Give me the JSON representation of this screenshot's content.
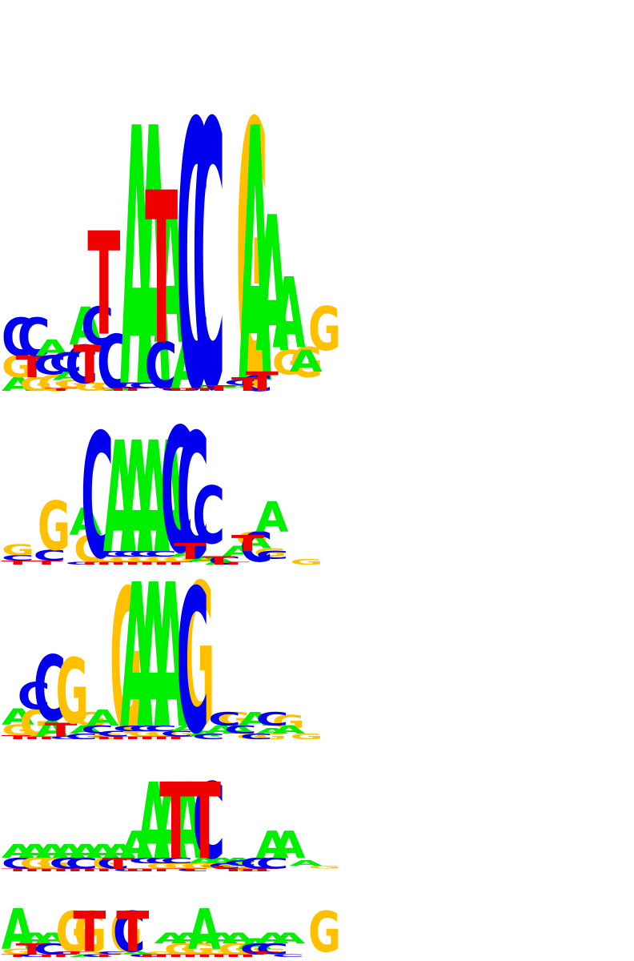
{
  "colors": {
    "A": "#00ee00",
    "C": "#0000ee",
    "G": "#ffc000",
    "T": "#ee0000"
  },
  "logos": [
    {
      "name": "motif-1",
      "columns": [
        [
          [
            "A",
            0.05
          ],
          [
            "G",
            0.08
          ],
          [
            "C",
            0.14
          ]
        ],
        [
          [
            "G",
            0.05
          ],
          [
            "T",
            0.08
          ],
          [
            "C",
            0.14
          ]
        ],
        [
          [
            "G",
            0.06
          ],
          [
            "C",
            0.07
          ],
          [
            "A",
            0.06
          ]
        ],
        [
          [
            "T",
            0.01
          ],
          [
            "G",
            0.03
          ],
          [
            "A",
            0.03
          ],
          [
            "C",
            0.07
          ]
        ],
        [
          [
            "G",
            0.03
          ],
          [
            "C",
            0.14
          ],
          [
            "A",
            0.14
          ]
        ],
        [
          [
            "G",
            0.03
          ],
          [
            "T",
            0.14
          ],
          [
            "C",
            0.14
          ]
        ],
        [
          [
            "A",
            0.01
          ],
          [
            "C",
            0.2
          ],
          [
            "T",
            0.38
          ]
        ],
        [
          [
            "T",
            0.01
          ],
          [
            "C",
            0.02
          ],
          [
            "A",
            0.95
          ]
        ],
        [
          [
            "T",
            0.01
          ],
          [
            "C",
            0.02
          ],
          [
            "A",
            0.95
          ]
        ],
        [
          [
            "G",
            0.01
          ],
          [
            "C",
            0.17
          ],
          [
            "A",
            0.56
          ]
        ],
        [
          [
            "C",
            0.01
          ],
          [
            "A",
            0.17
          ],
          [
            "T",
            0.56
          ]
        ],
        [
          [
            "T",
            0.01
          ],
          [
            "A",
            0.01
          ],
          [
            "C",
            0.98
          ]
        ],
        [
          [
            "T",
            0.01
          ],
          [
            "A",
            0.01
          ],
          [
            "C",
            0.98
          ]
        ],
        [
          [
            "T",
            0.01
          ],
          [
            "A",
            0.01
          ],
          [
            "G",
            0.98
          ]
        ],
        [
          [
            "T",
            0.02
          ],
          [
            "C",
            0.02
          ],
          [
            "A",
            0.94
          ]
        ],
        [
          [
            "C",
            0.06
          ],
          [
            "G",
            0.09
          ],
          [
            "A",
            0.5
          ]
        ],
        [
          [
            "T",
            0.05
          ],
          [
            "G",
            0.11
          ],
          [
            "A",
            0.26
          ]
        ],
        [
          [
            "T",
            0.07
          ],
          [
            "A",
            0.08
          ],
          [
            "G",
            0.16
          ]
        ]
      ]
    },
    {
      "name": "motif-2",
      "columns": [
        [
          [
            "T",
            0.015
          ],
          [
            "C",
            0.02
          ],
          [
            "G",
            0.04
          ]
        ],
        [],
        [
          [
            "T",
            0.015
          ],
          [
            "C",
            0.04
          ],
          [
            "G",
            0.18
          ]
        ],
        [],
        [
          [
            "C",
            0.01
          ],
          [
            "G",
            0.1
          ],
          [
            "A",
            0.1
          ]
        ],
        [
          [
            "T",
            0.01
          ],
          [
            "G",
            0.02
          ],
          [
            "C",
            0.46
          ]
        ],
        [
          [
            "T",
            0.01
          ],
          [
            "G",
            0.02
          ],
          [
            "C",
            0.02
          ],
          [
            "A",
            0.41
          ]
        ],
        [
          [
            "T",
            0.01
          ],
          [
            "G",
            0.02
          ],
          [
            "C",
            0.02
          ],
          [
            "A",
            0.41
          ]
        ],
        [
          [
            "T",
            0.01
          ],
          [
            "G",
            0.02
          ],
          [
            "C",
            0.02
          ],
          [
            "A",
            0.41
          ]
        ],
        [
          [
            "T",
            0.01
          ],
          [
            "G",
            0.02
          ],
          [
            "C",
            0.02
          ],
          [
            "A",
            0.41
          ]
        ],
        [
          [
            "T",
            0.01
          ],
          [
            "G",
            0.02
          ],
          [
            "A",
            0.02
          ],
          [
            "C",
            0.46
          ]
        ],
        [
          [
            "T",
            0.01
          ],
          [
            "A",
            0.02
          ],
          [
            "C",
            0.46
          ]
        ],
        [
          [
            "A",
            0.02
          ],
          [
            "T",
            0.06
          ],
          [
            "C",
            0.21
          ]
        ],
        [
          [
            "C",
            0.03
          ],
          [
            "A",
            0.04
          ],
          [
            "G",
            0.05
          ]
        ],
        [
          [
            "T",
            0.03
          ],
          [
            "G",
            0.03
          ],
          [
            "A",
            0.05
          ]
        ],
        [
          [
            "T",
            0.01
          ],
          [
            "C",
            0.11
          ],
          [
            "A",
            0.11
          ]
        ],
        [
          [
            "G",
            0.02
          ],
          [
            "C",
            0.03
          ],
          [
            "T",
            0.06
          ]
        ]
      ]
    },
    {
      "name": "motif-3",
      "columns": [
        [
          [
            "T",
            0.015
          ],
          [
            "G",
            0.04
          ],
          [
            "A",
            0.06
          ]
        ],
        [
          [
            "T",
            0.01
          ],
          [
            "G",
            0.1
          ],
          [
            "C",
            0.1
          ]
        ],
        [
          [
            "T",
            0.01
          ],
          [
            "A",
            0.06
          ],
          [
            "C",
            0.24
          ]
        ],
        [
          [
            "C",
            0.01
          ],
          [
            "T",
            0.05
          ],
          [
            "G",
            0.24
          ]
        ],
        [
          [
            "C",
            0.02
          ],
          [
            "A",
            0.03
          ],
          [
            "G",
            0.05
          ]
        ],
        [
          [
            "G",
            0.02
          ],
          [
            "C",
            0.03
          ],
          [
            "A",
            0.06
          ]
        ],
        [
          [
            "T",
            0.01
          ],
          [
            "C",
            0.02
          ],
          [
            "G",
            0.53
          ]
        ],
        [
          [
            "T",
            0.01
          ],
          [
            "G",
            0.02
          ],
          [
            "C",
            0.02
          ],
          [
            "A",
            0.53
          ]
        ],
        [
          [
            "T",
            0.01
          ],
          [
            "G",
            0.02
          ],
          [
            "C",
            0.02
          ],
          [
            "A",
            0.53
          ]
        ],
        [
          [
            "T",
            0.01
          ],
          [
            "G",
            0.02
          ],
          [
            "C",
            0.02
          ],
          [
            "A",
            0.53
          ]
        ],
        [
          [
            "T",
            0.01
          ],
          [
            "C",
            0.02
          ],
          [
            "A",
            0.02
          ],
          [
            "G",
            0.53
          ]
        ],
        [
          [
            "T",
            0.01
          ],
          [
            "A",
            0.02
          ],
          [
            "C",
            0.53
          ]
        ],
        [
          [
            "C",
            0.02
          ],
          [
            "A",
            0.03
          ],
          [
            "G",
            0.05
          ]
        ],
        [
          [
            "G",
            0.02
          ],
          [
            "A",
            0.03
          ],
          [
            "C",
            0.05
          ]
        ],
        [
          [
            "G",
            0.02
          ],
          [
            "C",
            0.03
          ],
          [
            "A",
            0.05
          ]
        ],
        [
          [
            "C",
            0.02
          ],
          [
            "A",
            0.02
          ],
          [
            "G",
            0.05
          ]
        ],
        [
          [
            "G",
            0.02
          ],
          [
            "A",
            0.03
          ],
          [
            "C",
            0.05
          ]
        ]
      ]
    },
    {
      "name": "motif-4",
      "columns": [
        [
          [
            "T",
            0.01
          ],
          [
            "C",
            0.04
          ],
          [
            "A",
            0.05
          ]
        ],
        [
          [
            "T",
            0.01
          ],
          [
            "G",
            0.04
          ],
          [
            "A",
            0.05
          ]
        ],
        [
          [
            "T",
            0.01
          ],
          [
            "G",
            0.04
          ],
          [
            "A",
            0.05
          ]
        ],
        [
          [
            "T",
            0.01
          ],
          [
            "C",
            0.04
          ],
          [
            "A",
            0.05
          ]
        ],
        [
          [
            "T",
            0.01
          ],
          [
            "C",
            0.04
          ],
          [
            "A",
            0.05
          ]
        ],
        [
          [
            "T",
            0.01
          ],
          [
            "G",
            0.04
          ],
          [
            "A",
            0.05
          ]
        ],
        [
          [
            "T",
            0.01
          ],
          [
            "C",
            0.04
          ],
          [
            "A",
            0.05
          ]
        ],
        [
          [
            "C",
            0.01
          ],
          [
            "T",
            0.04
          ],
          [
            "A",
            0.1
          ]
        ],
        [
          [
            "T",
            0.01
          ],
          [
            "G",
            0.02
          ],
          [
            "C",
            0.02
          ],
          [
            "A",
            0.28
          ]
        ],
        [
          [
            "T",
            0.01
          ],
          [
            "G",
            0.02
          ],
          [
            "C",
            0.02
          ],
          [
            "A",
            0.28
          ]
        ],
        [
          [
            "T",
            0.01
          ],
          [
            "G",
            0.02
          ],
          [
            "C",
            0.02
          ],
          [
            "A",
            0.28
          ]
        ],
        [
          [
            "C",
            0.01
          ],
          [
            "G",
            0.02
          ],
          [
            "A",
            0.02
          ],
          [
            "T",
            0.28
          ]
        ],
        [
          [
            "T",
            0.01
          ],
          [
            "G",
            0.02
          ],
          [
            "A",
            0.02
          ],
          [
            "C",
            0.28
          ]
        ],
        [
          [
            "G",
            0.01
          ],
          [
            "C",
            0.02
          ],
          [
            "A",
            0.02
          ],
          [
            "T",
            0.28
          ]
        ],
        [
          [
            "A",
            0.01
          ],
          [
            "T",
            0.01
          ],
          [
            "C",
            0.02
          ]
        ],
        [
          [
            "T",
            0.01
          ],
          [
            "C",
            0.04
          ],
          [
            "A",
            0.1
          ]
        ],
        [
          [
            "T",
            0.01
          ],
          [
            "C",
            0.04
          ],
          [
            "A",
            0.1
          ]
        ],
        [
          [
            "T",
            0.01
          ],
          [
            "G",
            0.01
          ],
          [
            "A",
            0.02
          ]
        ]
      ]
    },
    {
      "name": "motif-5",
      "columns": [
        [
          [
            "T",
            0.01
          ],
          [
            "G",
            0.02
          ],
          [
            "A",
            0.15
          ]
        ],
        [
          [
            "C",
            0.01
          ],
          [
            "T",
            0.04
          ],
          [
            "A",
            0.04
          ]
        ],
        [
          [
            "T",
            0.01
          ],
          [
            "C",
            0.04
          ],
          [
            "A",
            0.04
          ]
        ],
        [
          [
            "T",
            0.01
          ],
          [
            "C",
            0.01
          ],
          [
            "G",
            0.15
          ]
        ],
        [
          [
            "A",
            0.01
          ],
          [
            "T",
            0.01
          ],
          [
            "G",
            0.15
          ]
        ],
        [
          [
            "C",
            0.01
          ],
          [
            "G",
            0.01
          ],
          [
            "T",
            0.15
          ]
        ],
        [
          [
            "T",
            0.01
          ],
          [
            "C",
            0.01
          ],
          [
            "G",
            0.15
          ]
        ],
        [
          [
            "G",
            0.01
          ],
          [
            "A",
            0.01
          ],
          [
            "C",
            0.15
          ]
        ],
        [
          [
            "C",
            0.01
          ],
          [
            "G",
            0.01
          ],
          [
            "T",
            0.15
          ]
        ],
        [
          [
            "T",
            0.01
          ],
          [
            "G",
            0.04
          ],
          [
            "A",
            0.04
          ]
        ],
        [
          [
            "T",
            0.01
          ],
          [
            "G",
            0.04
          ],
          [
            "A",
            0.04
          ]
        ],
        [
          [
            "T",
            0.01
          ],
          [
            "G",
            0.02
          ],
          [
            "A",
            0.15
          ]
        ],
        [
          [
            "T",
            0.01
          ],
          [
            "G",
            0.04
          ],
          [
            "A",
            0.04
          ]
        ],
        [
          [
            "T",
            0.01
          ],
          [
            "G",
            0.04
          ],
          [
            "A",
            0.04
          ]
        ],
        [
          [
            "T",
            0.01
          ],
          [
            "G",
            0.02
          ],
          [
            "A",
            0.04
          ]
        ],
        [
          [
            "T",
            0.01
          ],
          [
            "C",
            0.04
          ],
          [
            "A",
            0.04
          ]
        ],
        [
          [
            "T",
            0.01
          ],
          [
            "C",
            0.04
          ],
          [
            "A",
            0.04
          ]
        ],
        [
          [
            "C",
            0.01
          ],
          [
            "T",
            0.01
          ],
          [
            "G",
            0.15
          ]
        ]
      ]
    }
  ]
}
